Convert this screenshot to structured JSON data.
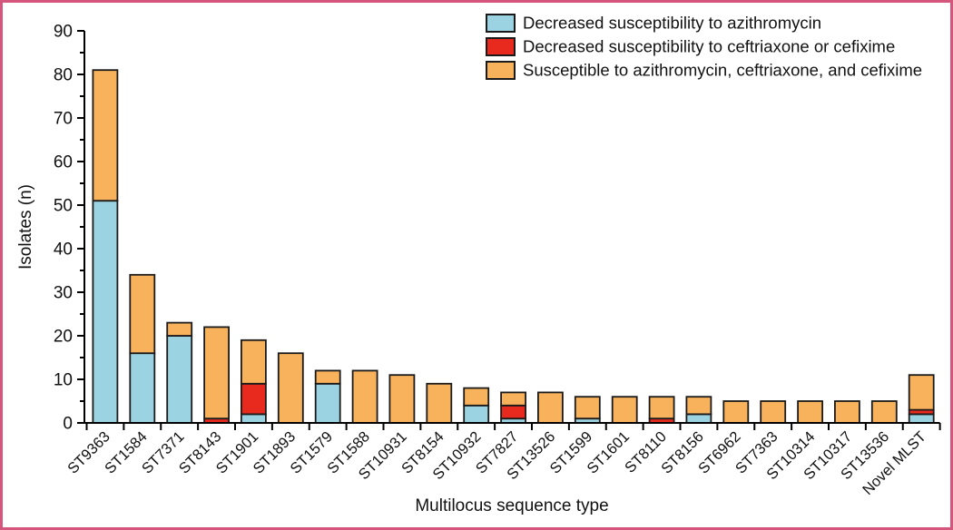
{
  "figure": {
    "x_axis_title": "Multilocus sequence type",
    "y_axis_title": "Isolates (n)"
  },
  "colors": {
    "frame": "#d4567c",
    "bar_outline": "#1a1a1a",
    "axis": "#000000",
    "blue": "#9cd3e3",
    "red": "#e8291e",
    "orange": "#f9b25c"
  },
  "legend": {
    "items": [
      {
        "label": "Decreased susceptibility to azithromycin",
        "color": "#9cd3e3"
      },
      {
        "label": "Decreased susceptibility to ceftriaxone or cefixime",
        "color": "#e8291e"
      },
      {
        "label": "Susceptible to azithromycin, ceftriaxone, and cefixime",
        "color": "#f9b25c"
      }
    ]
  },
  "chart_data": {
    "type": "bar",
    "stacked": true,
    "title": "",
    "xlabel": "Multilocus sequence type",
    "ylabel": "Isolates (n)",
    "ylim": [
      0,
      90
    ],
    "y_major_tick": 10,
    "y_minor_tick": 5,
    "grid": false,
    "legend_position": "top-right",
    "categories": [
      "ST9363",
      "ST1584",
      "ST7371",
      "ST8143",
      "ST1901",
      "ST1893",
      "ST1579",
      "ST1588",
      "ST10931",
      "ST8154",
      "ST10932",
      "ST7827",
      "ST13526",
      "ST1599",
      "ST1601",
      "ST8110",
      "ST8156",
      "ST6962",
      "ST7363",
      "ST10314",
      "ST10317",
      "ST13536",
      "Novel MLST"
    ],
    "series": [
      {
        "name": "Decreased susceptibility to azithromycin",
        "color": "#9cd3e3",
        "values": [
          51,
          16,
          20,
          0,
          2,
          0,
          9,
          0,
          0,
          0,
          4,
          1,
          0,
          1,
          0,
          0,
          2,
          0,
          0,
          0,
          0,
          0,
          2
        ]
      },
      {
        "name": "Decreased susceptibility to ceftriaxone or cefixime",
        "color": "#e8291e",
        "values": [
          0,
          0,
          0,
          1,
          7,
          0,
          0,
          0,
          0,
          0,
          0,
          3,
          0,
          0,
          0,
          1,
          0,
          0,
          0,
          0,
          0,
          0,
          1
        ]
      },
      {
        "name": "Susceptible to azithromycin, ceftriaxone, and cefixime",
        "color": "#f9b25c",
        "values": [
          30,
          18,
          3,
          21,
          10,
          16,
          3,
          12,
          11,
          9,
          4,
          3,
          7,
          5,
          6,
          5,
          4,
          5,
          5,
          5,
          5,
          5,
          8
        ]
      }
    ],
    "totals": [
      81,
      34,
      23,
      22,
      19,
      16,
      12,
      12,
      11,
      9,
      8,
      7,
      7,
      6,
      6,
      6,
      6,
      5,
      5,
      5,
      5,
      5,
      11
    ]
  }
}
